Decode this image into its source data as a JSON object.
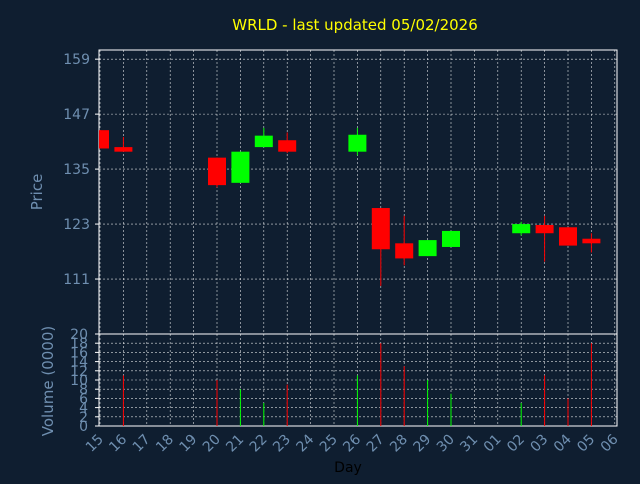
{
  "chart_data": {
    "type": "candlestick",
    "title": "WRLD - last updated 05/02/2026",
    "xlabel": "Day",
    "price_axis": {
      "ylabel": "Price",
      "ylim": [
        99,
        161
      ],
      "ticks": [
        111,
        123,
        135,
        147,
        159
      ]
    },
    "volume_axis": {
      "ylabel": "Volume (0000)",
      "ylim": [
        0,
        20
      ],
      "ticks": [
        0,
        2,
        4,
        6,
        8,
        10,
        12,
        14,
        16,
        18,
        20
      ]
    },
    "x_ticks": [
      "15",
      "16",
      "17",
      "18",
      "19",
      "20",
      "21",
      "22",
      "23",
      "24",
      "25",
      "26",
      "27",
      "28",
      "29",
      "30",
      "31",
      "01",
      "02",
      "03",
      "04",
      "05",
      "06"
    ],
    "grid": true,
    "colors": {
      "up": "#00ff00",
      "down": "#ff0000",
      "background": "#0f1e30",
      "axis": "#ffffff",
      "grid": "#ffffff",
      "title": "#ffff00",
      "label": "#6f8fb0"
    },
    "candles": [
      {
        "day": "15",
        "open": 143.5,
        "high": 143.5,
        "low": 139.5,
        "close": 139.5,
        "volume": 0
      },
      {
        "day": "16",
        "open": 139.8,
        "high": 142.0,
        "low": 138.8,
        "close": 138.8,
        "volume": 11
      },
      {
        "day": "20",
        "open": 137.5,
        "high": 137.5,
        "low": 131.0,
        "close": 131.5,
        "volume": 10
      },
      {
        "day": "21",
        "open": 132.0,
        "high": 138.8,
        "low": 132.0,
        "close": 138.8,
        "volume": 8
      },
      {
        "day": "22",
        "open": 139.8,
        "high": 144.0,
        "low": 139.8,
        "close": 142.3,
        "volume": 5
      },
      {
        "day": "23",
        "open": 141.3,
        "high": 143.0,
        "low": 138.5,
        "close": 138.8,
        "volume": 9
      },
      {
        "day": "26",
        "open": 138.8,
        "high": 144.0,
        "low": 138.0,
        "close": 142.5,
        "volume": 11
      },
      {
        "day": "27",
        "open": 126.5,
        "high": 126.5,
        "low": 109.5,
        "close": 117.5,
        "volume": 18
      },
      {
        "day": "28",
        "open": 118.8,
        "high": 124.8,
        "low": 114.0,
        "close": 115.5,
        "volume": 13
      },
      {
        "day": "29",
        "open": 116.0,
        "high": 119.5,
        "low": 116.0,
        "close": 119.5,
        "volume": 10
      },
      {
        "day": "30",
        "open": 118.0,
        "high": 121.5,
        "low": 118.0,
        "close": 121.5,
        "volume": 7
      },
      {
        "day": "02",
        "open": 121.0,
        "high": 123.5,
        "low": 120.5,
        "close": 123.0,
        "volume": 5
      },
      {
        "day": "03",
        "open": 122.8,
        "high": 124.8,
        "low": 114.8,
        "close": 121.0,
        "volume": 11
      },
      {
        "day": "04",
        "open": 122.3,
        "high": 122.3,
        "low": 118.3,
        "close": 118.3,
        "volume": 6
      },
      {
        "day": "05",
        "open": 119.8,
        "high": 121.0,
        "low": 116.8,
        "close": 118.8,
        "volume": 18
      }
    ]
  }
}
